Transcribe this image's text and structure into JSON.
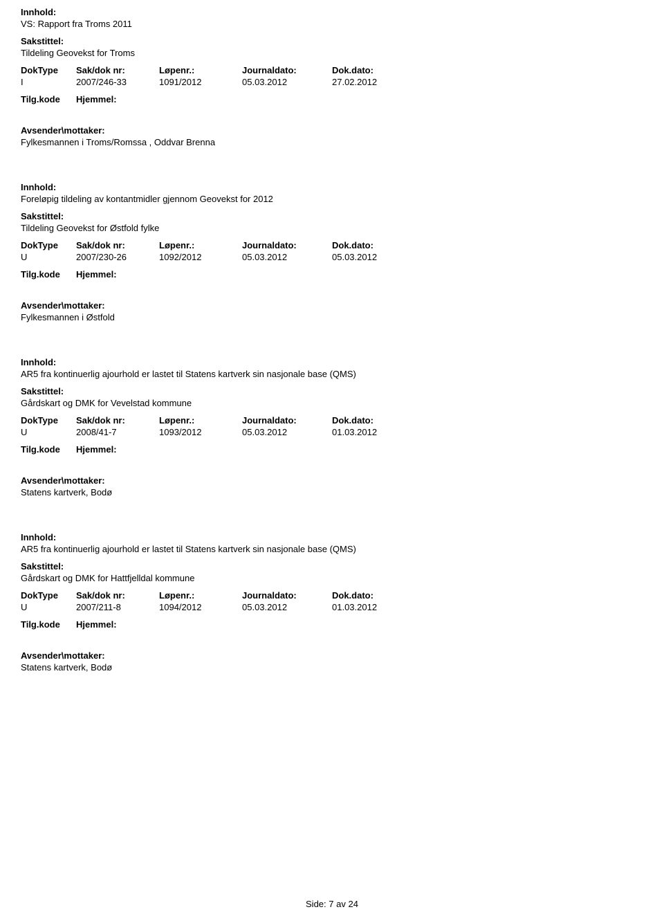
{
  "labels": {
    "innhold": "Innhold:",
    "sakstittel": "Sakstittel:",
    "doktype": "DokType",
    "saknr": "Sak/dok nr:",
    "lopenr": "Løpenr.:",
    "journaldato": "Journaldato:",
    "dokdato": "Dok.dato:",
    "tilgkode": "Tilg.kode",
    "hjemmel": "Hjemmel:",
    "avsender": "Avsender\\mottaker:"
  },
  "entries": [
    {
      "innhold": "VS: Rapport fra Troms 2011",
      "sakstittel": "Tildeling Geovekst for Troms",
      "doktype": "I",
      "saknr": "2007/246-33",
      "lopenr": "1091/2012",
      "journaldato": "05.03.2012",
      "dokdato": "27.02.2012",
      "avsender": "Fylkesmannen i Troms/Romssa , Oddvar Brenna"
    },
    {
      "innhold": "Foreløpig tildeling av kontantmidler gjennom Geovekst for 2012",
      "sakstittel": "Tildeling Geovekst for Østfold fylke",
      "doktype": "U",
      "saknr": "2007/230-26",
      "lopenr": "1092/2012",
      "journaldato": "05.03.2012",
      "dokdato": "05.03.2012",
      "avsender": "Fylkesmannen i Østfold"
    },
    {
      "innhold": "AR5 fra kontinuerlig ajourhold er lastet til Statens kartverk sin nasjonale base (QMS)",
      "sakstittel": "Gårdskart og DMK for Vevelstad kommune",
      "doktype": "U",
      "saknr": "2008/41-7",
      "lopenr": "1093/2012",
      "journaldato": "05.03.2012",
      "dokdato": "01.03.2012",
      "avsender": "Statens kartverk, Bodø"
    },
    {
      "innhold": "AR5 fra kontinuerlig ajourhold er lastet til Statens kartverk sin nasjonale base (QMS)",
      "sakstittel": "Gårdskart og DMK for Hattfjelldal kommune",
      "doktype": "U",
      "saknr": "2007/211-8",
      "lopenr": "1094/2012",
      "journaldato": "05.03.2012",
      "dokdato": "01.03.2012",
      "avsender": "Statens kartverk, Bodø"
    }
  ],
  "footer": {
    "prefix": "Side:",
    "page": "7",
    "sep": "av",
    "total": "24"
  }
}
